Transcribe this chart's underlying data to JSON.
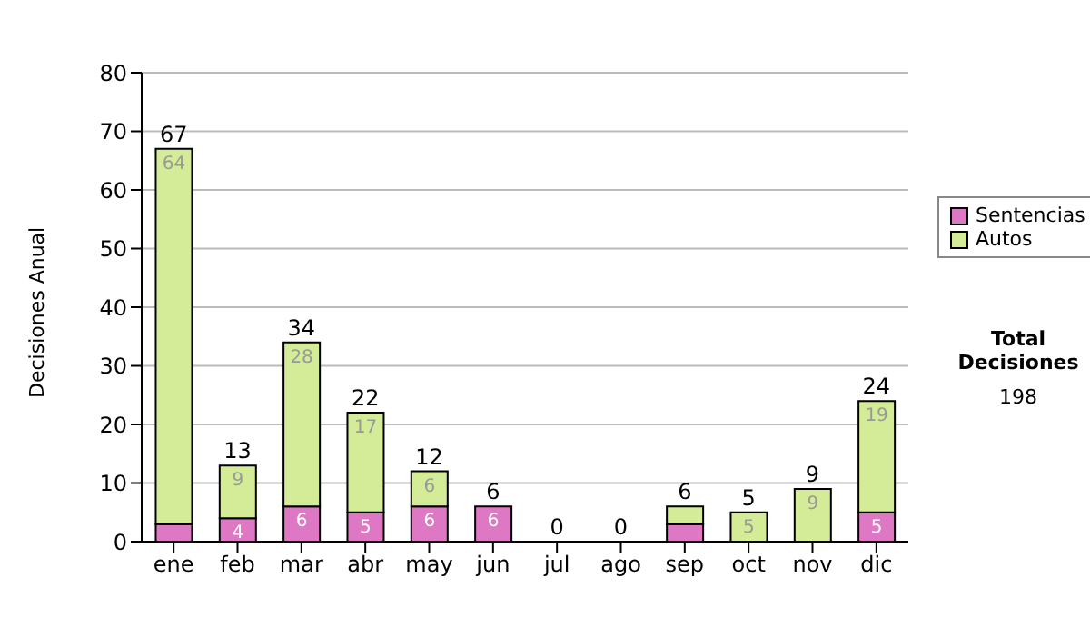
{
  "chart_data": {
    "type": "bar",
    "ylabel": "Decisiones Anual",
    "categories": [
      "ene",
      "feb",
      "mar",
      "abr",
      "may",
      "jun",
      "jul",
      "ago",
      "sep",
      "oct",
      "nov",
      "dic"
    ],
    "stacked": true,
    "series": [
      {
        "name": "Sentencias",
        "color": "#df78c4",
        "values": [
          3,
          4,
          6,
          5,
          6,
          6,
          0,
          0,
          3,
          0,
          0,
          5
        ],
        "value_labels": [
          null,
          "4",
          "6",
          "5",
          "6",
          "6",
          null,
          null,
          null,
          null,
          null,
          "5"
        ]
      },
      {
        "name": "Autos",
        "color": "#d4ec98",
        "values": [
          64,
          9,
          28,
          17,
          6,
          0,
          0,
          0,
          3,
          5,
          9,
          19
        ],
        "value_labels": [
          "64",
          "9",
          "28",
          "17",
          "6",
          null,
          null,
          null,
          null,
          "5",
          "9",
          "19"
        ]
      }
    ],
    "totals": [
      "67",
      "13",
      "34",
      "22",
      "12",
      "6",
      "0",
      "0",
      "6",
      "5",
      "9",
      "24"
    ],
    "ylim": [
      0,
      80
    ],
    "yticks": [
      0,
      10,
      20,
      30,
      40,
      50,
      60,
      70,
      80
    ],
    "grid": "y",
    "legend": "right",
    "annotations": [
      "Total Decisiones",
      "198"
    ]
  }
}
